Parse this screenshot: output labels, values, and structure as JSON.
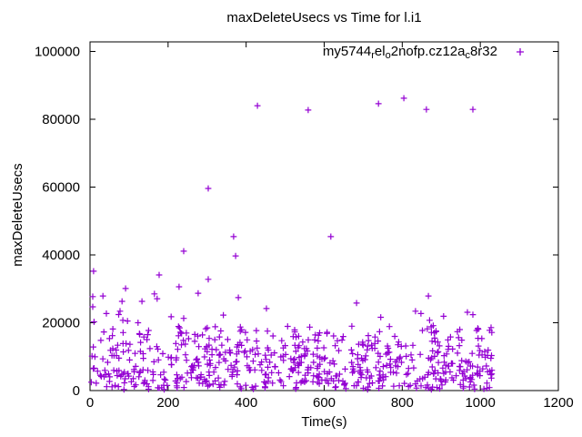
{
  "chart_data": {
    "type": "scatter",
    "title": "maxDeleteUsecs vs Time for l.i1",
    "xlabel": "Time(s)",
    "ylabel": "maxDeleteUsecs",
    "xlim": [
      0,
      1200
    ],
    "ylim": [
      0,
      102800
    ],
    "xticks": [
      0,
      200,
      400,
      600,
      800,
      1000,
      1200
    ],
    "yticks": [
      0,
      20000,
      40000,
      60000,
      80000,
      100000
    ],
    "grid": false,
    "background": "#ffffff",
    "axis_color": "#000000",
    "legend_position": "top-right-inside",
    "series": [
      {
        "name": "my5744_rel_o2nofp.cz12a_c8r32",
        "name_segments": [
          {
            "text": "my5744",
            "sub": false
          },
          {
            "text": "r",
            "sub": true
          },
          {
            "text": "el",
            "sub": false
          },
          {
            "text": "o",
            "sub": true
          },
          {
            "text": "2nofp.cz12a",
            "sub": false
          },
          {
            "text": "c",
            "sub": true
          },
          {
            "text": "8r32",
            "sub": false
          }
        ],
        "marker": "plus",
        "color": "#9400D3",
        "outlier_points": [
          [
            429,
            84000
          ],
          [
            559,
            82700
          ],
          [
            739,
            84600
          ],
          [
            804,
            86200
          ],
          [
            862,
            82900
          ],
          [
            981,
            82900
          ],
          [
            303,
            59600
          ],
          [
            368,
            45400
          ],
          [
            617,
            45400
          ],
          [
            240,
            41100
          ],
          [
            373,
            39700
          ],
          [
            9,
            35200
          ],
          [
            177,
            34100
          ],
          [
            303,
            32800
          ],
          [
            228,
            30600
          ],
          [
            91,
            30100
          ],
          [
            277,
            28700
          ],
          [
            165,
            28500
          ],
          [
            33,
            27900
          ],
          [
            7,
            27700
          ],
          [
            867,
            27900
          ],
          [
            172,
            27100
          ],
          [
            380,
            27400
          ],
          [
            82,
            26300
          ],
          [
            133,
            26300
          ],
          [
            683,
            25800
          ],
          [
            452,
            24200
          ],
          [
            7,
            24700
          ],
          [
            834,
            23400
          ],
          [
            967,
            23100
          ],
          [
            77,
            23400
          ],
          [
            42,
            22700
          ],
          [
            848,
            22700
          ],
          [
            981,
            22400
          ],
          [
            906,
            21900
          ],
          [
            745,
            21600
          ],
          [
            240,
            21300
          ],
          [
            96,
            20500
          ],
          [
            123,
            20000
          ]
        ],
        "dense_cloud": {
          "description": "unresolvable dense mass of samples near the x axis, 0-1032s",
          "n": 650,
          "seed": 77,
          "x_min": 3,
          "x_max": 1030,
          "y_bands": [
            {
              "p": 0.46,
              "y0": 300,
              "y1": 6500
            },
            {
              "p": 0.27,
              "y0": 6500,
              "y1": 11000
            },
            {
              "p": 0.15,
              "y0": 11000,
              "y1": 15000
            },
            {
              "p": 0.105,
              "y0": 15000,
              "y1": 19000
            },
            {
              "p": 0.015,
              "y0": 19000,
              "y1": 22800
            }
          ]
        }
      }
    ]
  }
}
